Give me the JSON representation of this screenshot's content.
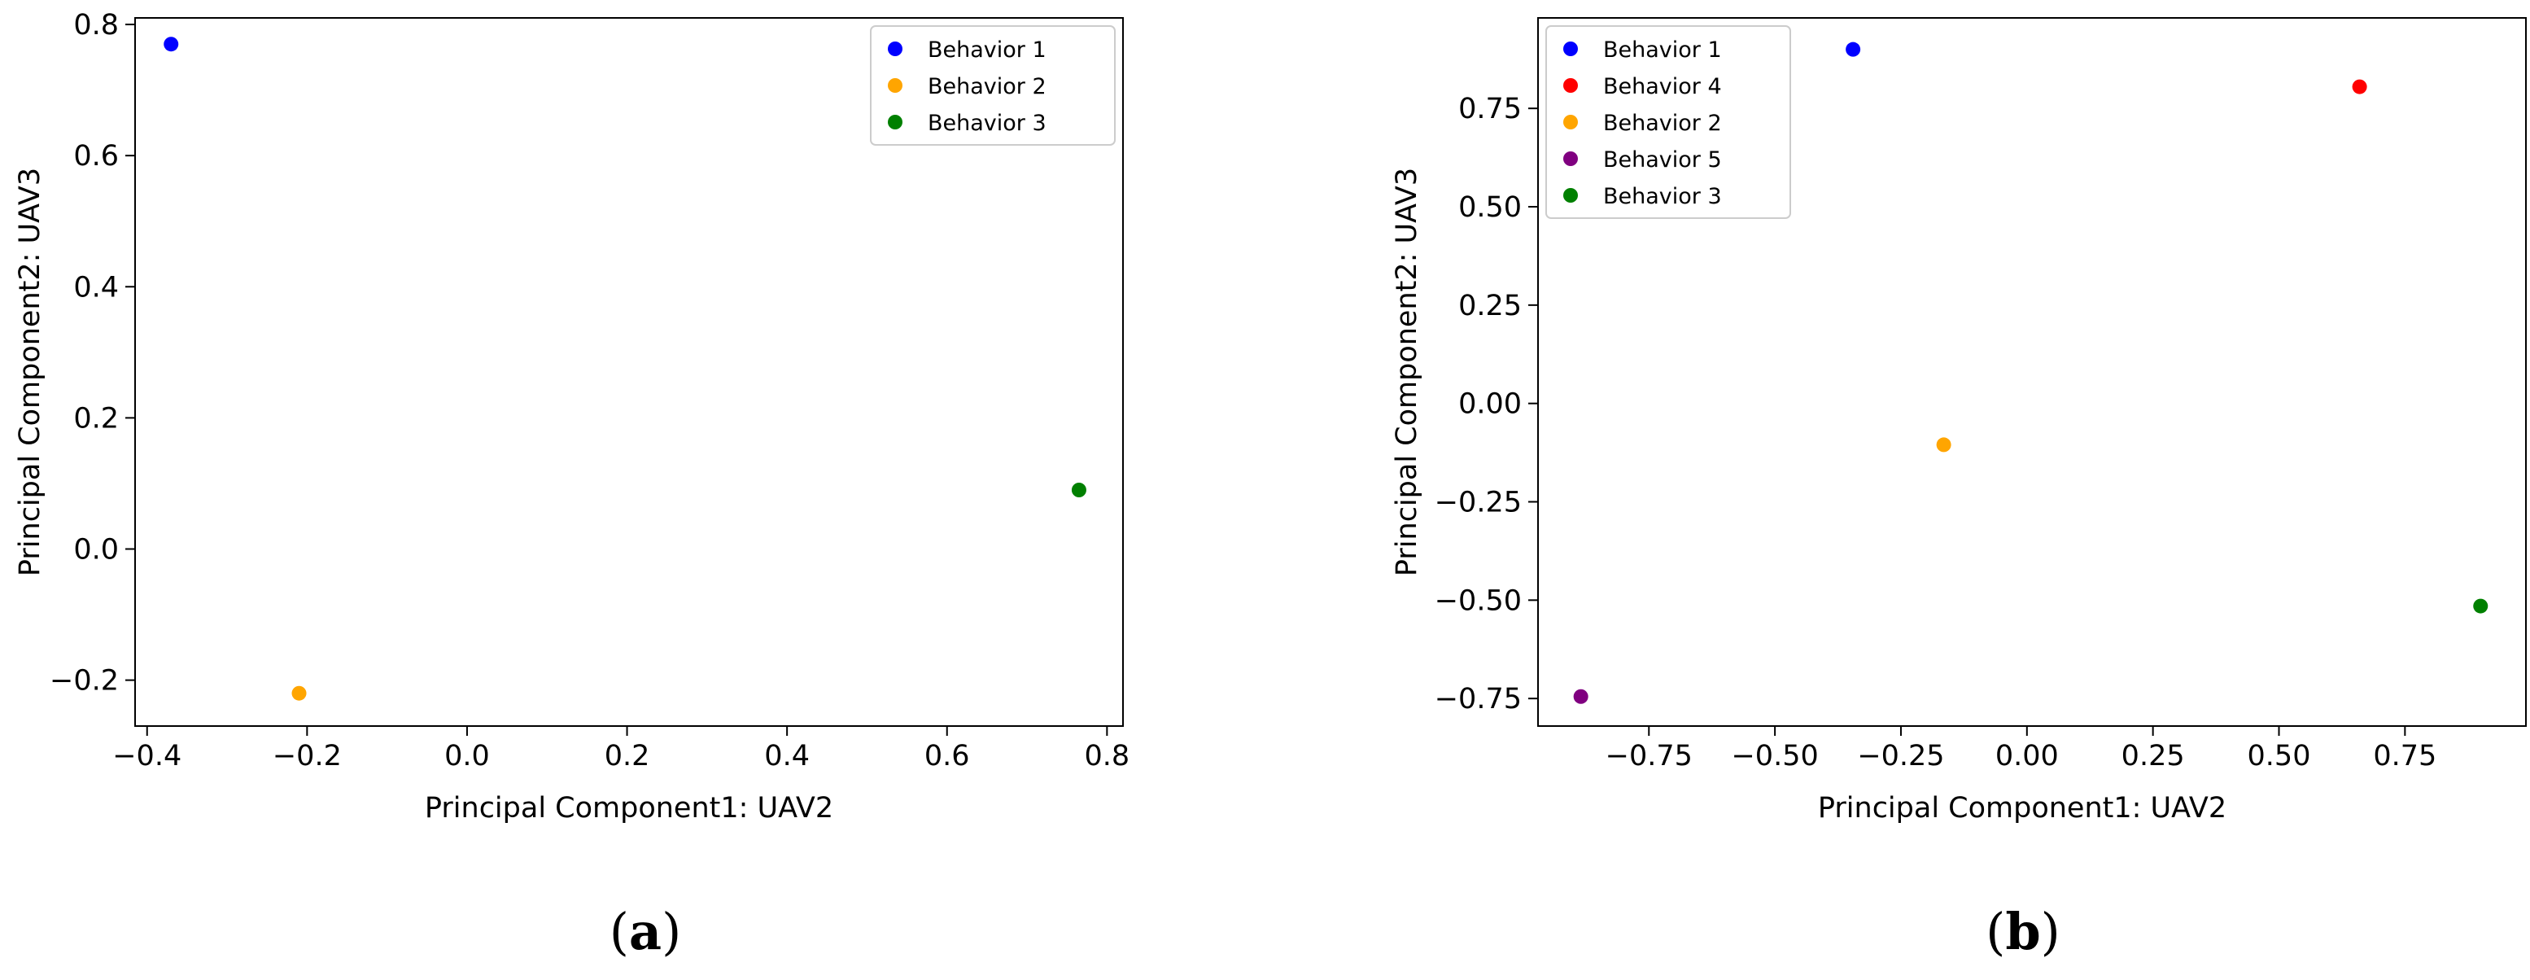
{
  "chart_data": [
    {
      "type": "scatter",
      "panel_label": "a",
      "xlabel": "Principal Component1: UAV2",
      "ylabel": "Principal Component2: UAV3",
      "xlim": [
        -0.415,
        0.82
      ],
      "ylim": [
        -0.27,
        0.81
      ],
      "xticks": [
        -0.4,
        -0.2,
        0.0,
        0.2,
        0.4,
        0.6,
        0.8
      ],
      "xtick_labels": [
        "−0.4",
        "−0.2",
        "0.0",
        "0.2",
        "0.4",
        "0.6",
        "0.8"
      ],
      "yticks": [
        -0.2,
        0.0,
        0.2,
        0.4,
        0.6,
        0.8
      ],
      "ytick_labels": [
        "−0.2",
        "0.0",
        "0.2",
        "0.4",
        "0.6",
        "0.8"
      ],
      "legend_position": "top-right",
      "series": [
        {
          "name": "Behavior 1",
          "color": "#0000ff",
          "x": -0.37,
          "y": 0.77
        },
        {
          "name": "Behavior 2",
          "color": "#ffa500",
          "x": -0.21,
          "y": -0.22
        },
        {
          "name": "Behavior 3",
          "color": "#008000",
          "x": 0.765,
          "y": 0.09
        }
      ]
    },
    {
      "type": "scatter",
      "panel_label": "b",
      "xlabel": "Principal Component1: UAV2",
      "ylabel": "Principal Component2: UAV3",
      "xlim": [
        -0.97,
        0.99
      ],
      "ylim": [
        -0.82,
        0.98
      ],
      "xticks": [
        -0.75,
        -0.5,
        -0.25,
        0.0,
        0.25,
        0.5,
        0.75
      ],
      "xtick_labels": [
        "−0.75",
        "−0.50",
        "−0.25",
        "0.00",
        "0.25",
        "0.50",
        "0.75"
      ],
      "yticks": [
        -0.75,
        -0.5,
        -0.25,
        0.0,
        0.25,
        0.5,
        0.75
      ],
      "ytick_labels": [
        "−0.75",
        "−0.50",
        "−0.25",
        "0.00",
        "0.25",
        "0.50",
        "0.75"
      ],
      "legend_position": "top-left",
      "series": [
        {
          "name": "Behavior 1",
          "color": "#0000ff",
          "x": -0.345,
          "y": 0.9
        },
        {
          "name": "Behavior 4",
          "color": "#ff0000",
          "x": 0.66,
          "y": 0.805
        },
        {
          "name": "Behavior 2",
          "color": "#ffa500",
          "x": -0.165,
          "y": -0.105
        },
        {
          "name": "Behavior 5",
          "color": "#800080",
          "x": -0.885,
          "y": -0.745
        },
        {
          "name": "Behavior 3",
          "color": "#008000",
          "x": 0.9,
          "y": -0.515
        }
      ]
    }
  ]
}
